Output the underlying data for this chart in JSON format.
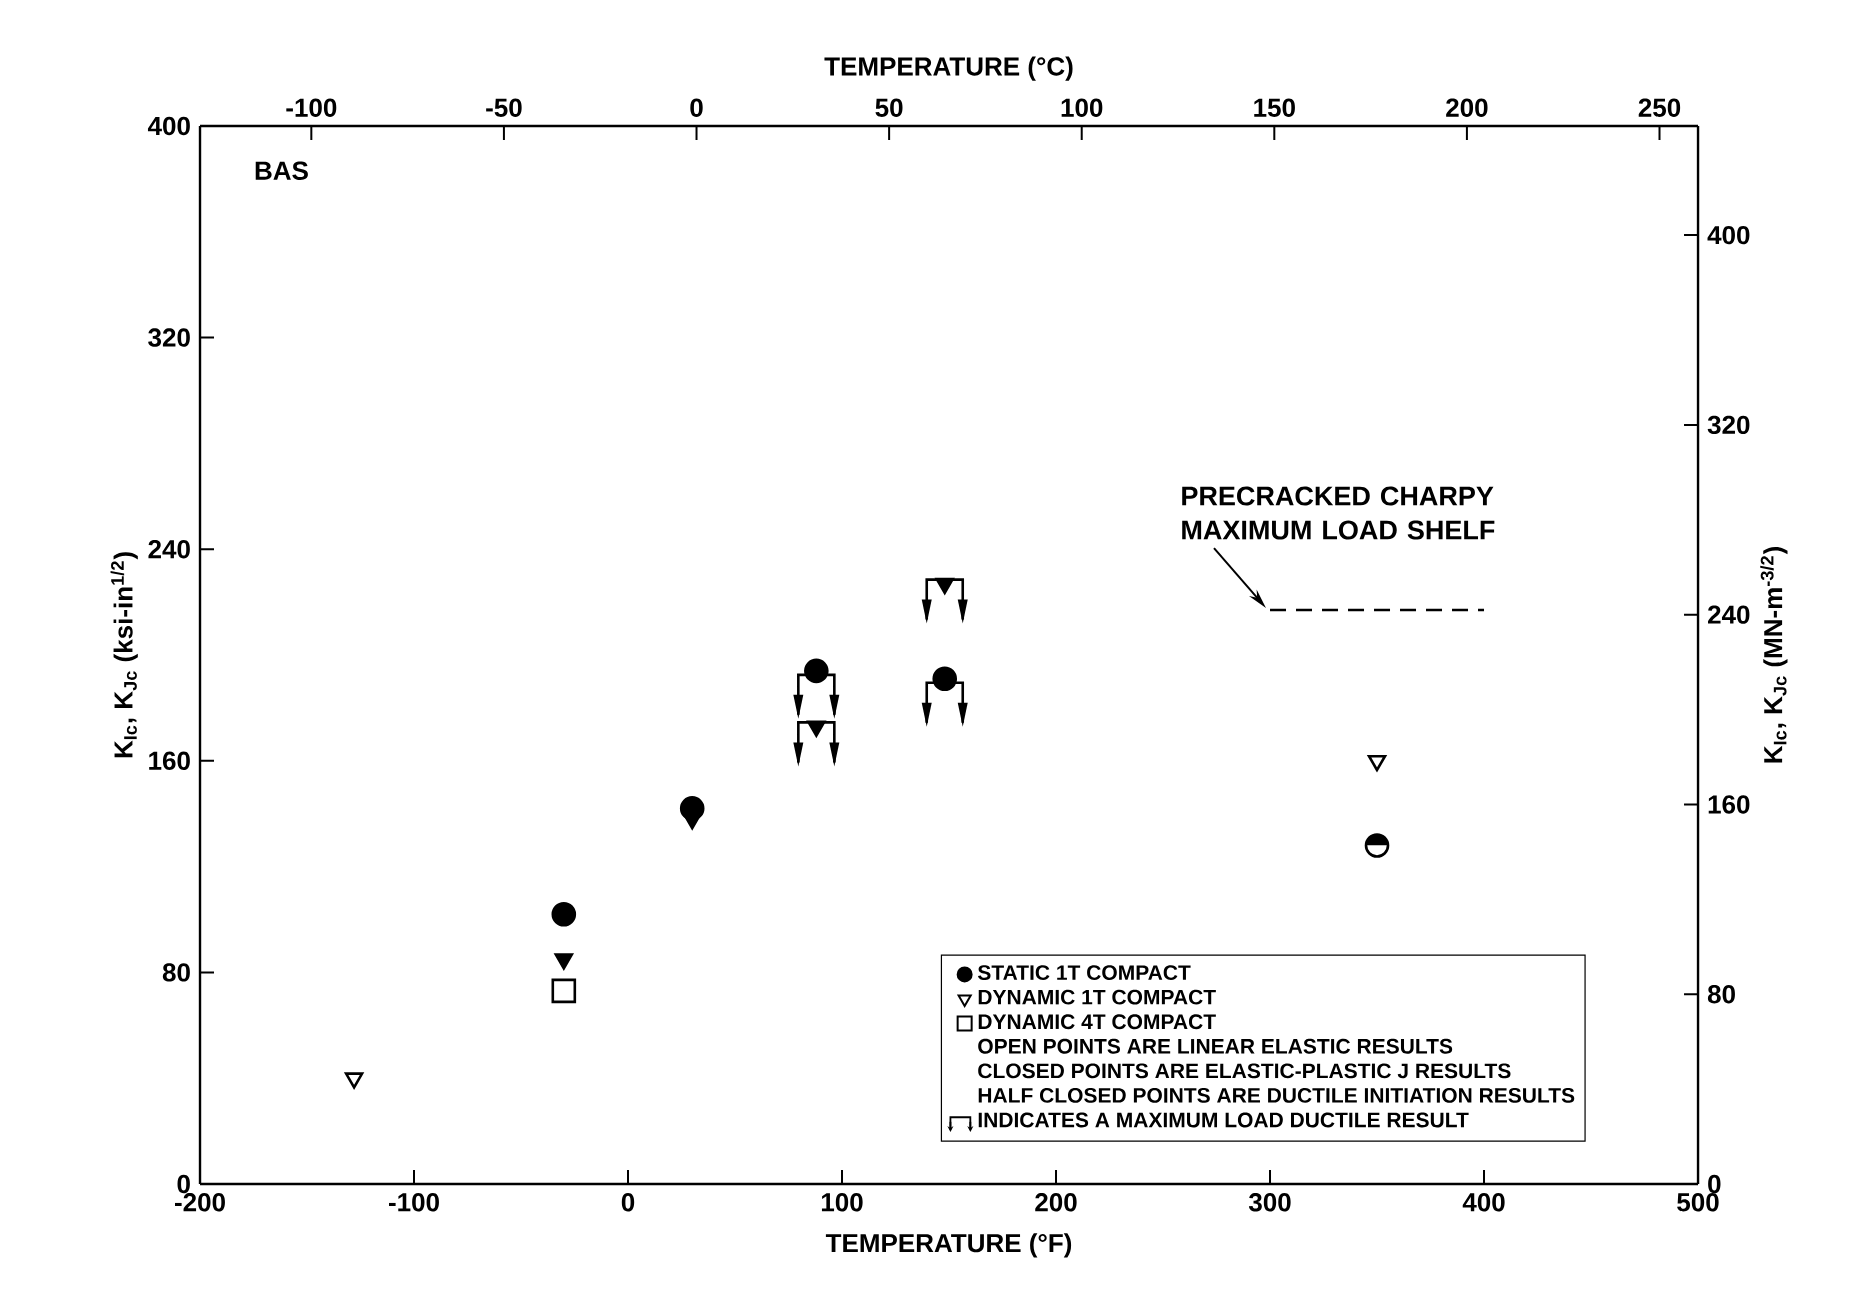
{
  "chart_data": {
    "type": "scatter",
    "xlabel": "TEMPERATURE (°F)",
    "x2label": "TEMPERATURE (°C)",
    "ylabel": "K$_{Ic}$, K$_{Jc}$ (ksi-in$^{1/2}$)",
    "y2label": "K$_{Ic}$, K$_{Jc}$ (MN-m$^{-3/2}$)",
    "xlim": [
      -200,
      500
    ],
    "xticks": [
      -200,
      -100,
      0,
      100,
      200,
      300,
      400,
      500
    ],
    "x2lim": [
      -128.9,
      260
    ],
    "x2ticks": [
      -100,
      -50,
      0,
      50,
      100,
      150,
      200,
      250
    ],
    "ylim": [
      0,
      400
    ],
    "yticks": [
      0,
      80,
      160,
      240,
      320,
      400
    ],
    "y2lim": [
      0,
      446
    ],
    "y2ticks": [
      0,
      80,
      160,
      240,
      320,
      400
    ],
    "legend": "bottom right",
    "series": [
      {
        "name": "STATIC 1T COMPACT",
        "marker": "circle",
        "color": "#000000",
        "x": [
          -30,
          30
        ],
        "values": [
          102,
          142
        ]
      },
      {
        "marker": "circle-maxload",
        "color": "#000000",
        "x": [
          88,
          148
        ],
        "values": [
          194,
          191
        ]
      },
      {
        "marker": "circle-half",
        "color": "#000000",
        "x": [
          350
        ],
        "values": [
          128
        ]
      },
      {
        "name": "DYNAMIC 1T COMPACT",
        "marker": "triangle-open",
        "color": "#000000",
        "x": [
          -128,
          350
        ],
        "values": [
          40,
          160
        ]
      },
      {
        "marker": "triangle",
        "color": "#000000",
        "x": [
          -30,
          30
        ],
        "values": [
          85,
          138
        ]
      },
      {
        "marker": "triangle-maxload",
        "color": "#000000",
        "x": [
          88,
          148
        ],
        "values": [
          173,
          227
        ]
      },
      {
        "name": "DYNAMIC 4T COMPACT",
        "marker": "square-open",
        "color": "#000000",
        "x": [
          -30
        ],
        "values": [
          73
        ]
      },
      {
        "type": "line",
        "line_style": "dashed",
        "marker": "none",
        "color": "#000000",
        "x": [
          300,
          400
        ],
        "values": [
          217,
          217
        ]
      }
    ],
    "annotations": [
      "BAS",
      {
        "text": "PRECRACKED CHARPY MAXIMUM LOAD SHELF",
        "x": 300,
        "y": 217
      },
      "OPEN POINTS ARE LINEAR ELASTIC RESULTS",
      "CLOSED POINTS ARE ELASTIC-PLASTIC J RESULTS",
      "HALF CLOSED POINTS ARE DUCTILE INITIATION RESULTS",
      "INDICATES A MAXIMUM LOAD DUCTILE RESULT"
    ]
  }
}
